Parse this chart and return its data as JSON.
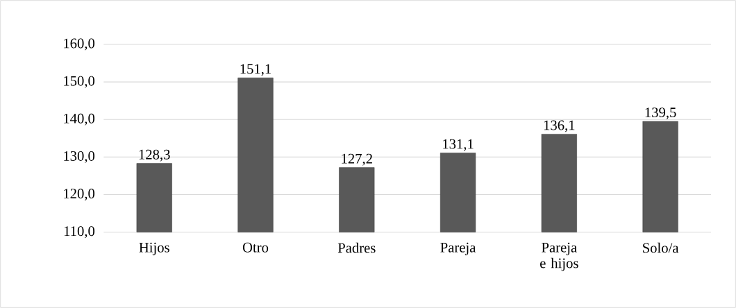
{
  "chart_data": {
    "type": "bar",
    "categories": [
      "Hijos",
      "Otro",
      "Padres",
      "Pareja",
      "Pareja e hijos",
      "Solo/a"
    ],
    "values": [
      128.3,
      151.1,
      127.2,
      131.1,
      136.1,
      139.5
    ],
    "value_labels": [
      "128,3",
      "151,1",
      "127,2",
      "131,1",
      "136,1",
      "139,5"
    ],
    "color": "#595959",
    "ylim": [
      110,
      160
    ],
    "yticks": [
      {
        "value": 110,
        "label": "110,0"
      },
      {
        "value": 120,
        "label": "120,0"
      },
      {
        "value": 130,
        "label": "130,0"
      },
      {
        "value": 140,
        "label": "140,0"
      },
      {
        "value": 150,
        "label": "150,0"
      },
      {
        "value": 160,
        "label": "160,0"
      }
    ],
    "grid": "y"
  }
}
